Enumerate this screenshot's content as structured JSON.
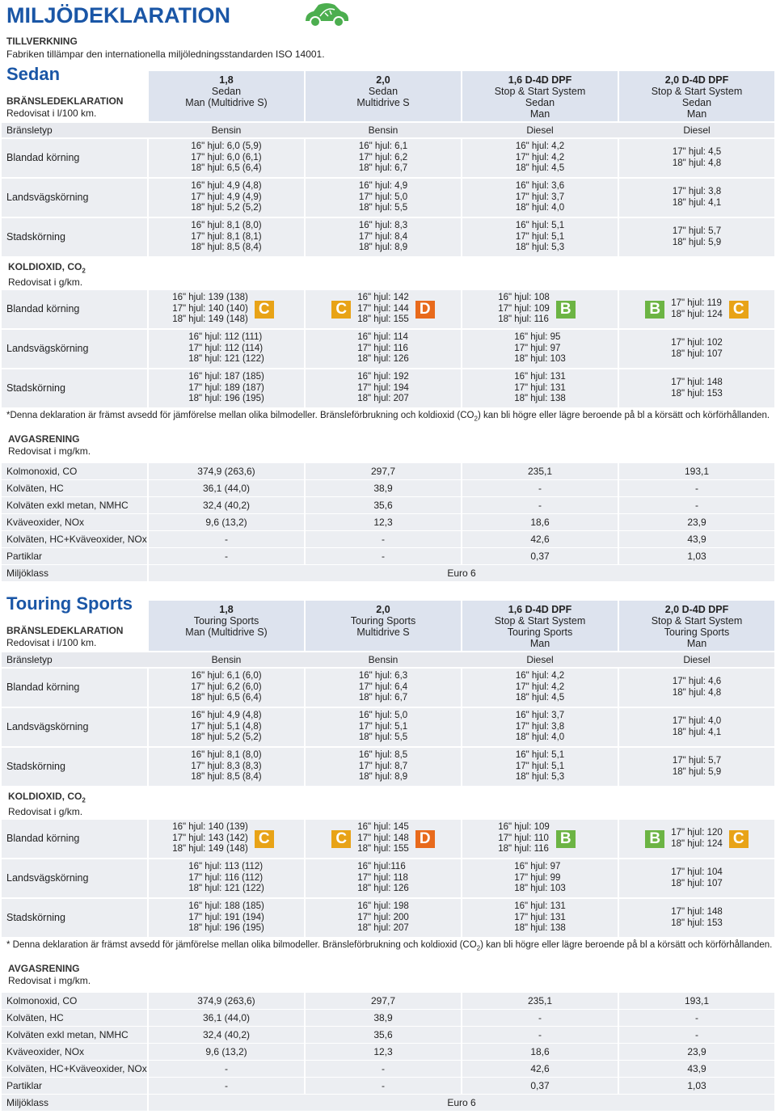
{
  "header": {
    "title": "MILJÖDEKLARATION",
    "subtitle": "TILLVERKNING",
    "text": "Fabriken tillämpar den internationella miljöledningsstandarden ISO 14001."
  },
  "sections": [
    {
      "name": "Sedan",
      "label": "BRÄNSLEDEKLARATION",
      "unit": "Redovisat i l/100 km.",
      "columns": [
        [
          "1,8",
          "Sedan",
          "Man (Multidrive S)"
        ],
        [
          "2,0",
          "Sedan",
          "Multidrive S"
        ],
        [
          "1,6 D-4D DPF",
          "Stop & Start System",
          "Sedan",
          "Man"
        ],
        [
          "2,0 D-4D DPF",
          "Stop & Start System",
          "Sedan",
          "Man"
        ]
      ],
      "fuel": {
        "label": "Bränsletyp",
        "values": [
          "Bensin",
          "Bensin",
          "Diesel",
          "Diesel"
        ]
      },
      "consumption": [
        {
          "label": "Blandad körning",
          "cells": [
            [
              "16\" hjul: 6,0 (5,9)",
              "17\" hjul: 6,0 (6,1)",
              "18\" hjul: 6,5 (6,4)"
            ],
            [
              "16\" hjul: 6,1",
              "17\" hjul: 6,2",
              "18\" hjul: 6,7"
            ],
            [
              "16\" hjul: 4,2",
              "17\" hjul: 4,2",
              "18\" hjul: 4,5"
            ],
            [
              "17\" hjul: 4,5",
              "18\" hjul: 4,8"
            ]
          ]
        },
        {
          "label": "Landsvägskörning",
          "cells": [
            [
              "16\" hjul: 4,9 (4,8)",
              "17\" hjul: 4,9 (4,9)",
              "18\" hjul: 5,2 (5,2)"
            ],
            [
              "16\" hjul: 4,9",
              "17\" hjul: 5,0",
              "18\" hjul: 5,5"
            ],
            [
              "16\" hjul: 3,6",
              "17\" hjul: 3,7",
              "18\" hjul: 4,0"
            ],
            [
              "17\" hjul: 3,8",
              "18\" hjul: 4,1"
            ]
          ]
        },
        {
          "label": "Stadskörning",
          "cells": [
            [
              "16\" hjul: 8,1 (8,0)",
              "17\" hjul: 8,1 (8,1)",
              "18\" hjul: 8,5 (8,4)"
            ],
            [
              "16\" hjul: 8,3",
              "17\" hjul: 8,4",
              "18\" hjul: 8,9"
            ],
            [
              "16\" hjul: 5,1",
              "17\" hjul: 5,1",
              "18\" hjul: 5,3"
            ],
            [
              "17\" hjul: 5,7",
              "18\" hjul: 5,9"
            ]
          ]
        }
      ],
      "co2_heading": [
        "KOLDIOXID, CO",
        "2"
      ],
      "co2_unit": "Redovisat i g/km.",
      "co2": [
        {
          "label": "Blandad körning",
          "cells": [
            [
              "16\" hjul: 139 (138)",
              "17\" hjul: 140 (140)",
              "18\" hjul: 149 (148)"
            ],
            [
              "16\" hjul: 142",
              "17\" hjul: 144",
              "18\" hjul: 155"
            ],
            [
              "16\" hjul: 108",
              "17\" hjul: 109",
              "18\" hjul: 116"
            ],
            [
              "17\" hjul: 119",
              "18\" hjul: 124"
            ]
          ],
          "badges": [
            {
              "right": "C"
            },
            {
              "left": "C",
              "right": "D"
            },
            {
              "right": "B"
            },
            {
              "left": "B",
              "right": "C"
            }
          ]
        },
        {
          "label": "Landsvägskörning",
          "cells": [
            [
              "16\" hjul: 112 (111)",
              "17\" hjul: 112 (114)",
              "18\" hjul: 121 (122)"
            ],
            [
              "16\" hjul: 114",
              "17\" hjul: 116",
              "18\" hjul: 126"
            ],
            [
              "16\" hjul: 95",
              "17\" hjul: 97",
              "18\" hjul: 103"
            ],
            [
              "17\" hjul: 102",
              "18\" hjul: 107"
            ]
          ]
        },
        {
          "label": "Stadskörning",
          "cells": [
            [
              "16\" hjul: 187 (185)",
              "17\" hjul: 189 (187)",
              "18\" hjul: 196 (195)"
            ],
            [
              "16\" hjul: 192",
              "17\" hjul: 194",
              "18\" hjul: 207"
            ],
            [
              "16\" hjul: 131",
              "17\" hjul: 131",
              "18\" hjul: 138"
            ],
            [
              "17\" hjul: 148",
              "18\" hjul: 153"
            ]
          ]
        }
      ],
      "footnote": [
        "*Denna deklaration är främst avsedd för jämförelse mellan olika bilmodeller. Bränsleförbrukning och koldioxid (CO",
        "2",
        ") kan bli högre eller lägre beroende på bl a körsätt och körförhållanden."
      ],
      "emissions_heading": "AVGASRENING",
      "emissions_unit": "Redovisat i mg/km.",
      "emissions": [
        {
          "label": "Kolmonoxid, CO",
          "values": [
            "374,9 (263,6)",
            "297,7",
            "235,1",
            "193,1"
          ]
        },
        {
          "label": "Kolväten, HC",
          "values": [
            "36,1 (44,0)",
            "38,9",
            "-",
            "-"
          ]
        },
        {
          "label": "Kolväten exkl metan, NMHC",
          "values": [
            "32,4 (40,2)",
            "35,6",
            "-",
            "-"
          ]
        },
        {
          "label": "Kväveoxider, NOx",
          "values": [
            "9,6 (13,2)",
            "12,3",
            "18,6",
            "23,9"
          ]
        },
        {
          "label": "Kolväten, HC+Kväveoxider, NOx",
          "values": [
            "-",
            "-",
            "42,6",
            "43,9"
          ]
        },
        {
          "label": "Partiklar",
          "values": [
            "-",
            "-",
            "0,37",
            "1,03"
          ]
        },
        {
          "label": "Miljöklass",
          "span": "Euro 6"
        }
      ]
    },
    {
      "name": "Touring Sports",
      "label": "BRÄNSLEDEKLARATION",
      "unit": "Redovisat i l/100 km.",
      "columns": [
        [
          "1,8",
          "Touring Sports",
          "Man (Multidrive S)"
        ],
        [
          "2,0",
          "Touring Sports",
          "Multidrive S"
        ],
        [
          "1,6 D-4D DPF",
          "Stop & Start System",
          "Touring Sports",
          "Man"
        ],
        [
          "2,0 D-4D DPF",
          "Stop & Start System",
          "Touring Sports",
          "Man"
        ]
      ],
      "fuel": {
        "label": "Bränsletyp",
        "values": [
          "Bensin",
          "Bensin",
          "Diesel",
          "Diesel"
        ]
      },
      "consumption": [
        {
          "label": "Blandad körning",
          "cells": [
            [
              "16\" hjul: 6,1 (6,0)",
              "17\" hjul: 6,2 (6,0)",
              "18\" hjul: 6,5 (6,4)"
            ],
            [
              "16\" hjul: 6,3",
              "17\" hjul: 6,4",
              "18\" hjul: 6,7"
            ],
            [
              "16\" hjul: 4,2",
              "17\" hjul: 4,2",
              "18\" hjul: 4,5"
            ],
            [
              "17\" hjul: 4,6",
              "18\" hjul: 4,8"
            ]
          ]
        },
        {
          "label": "Landsvägskörning",
          "cells": [
            [
              "16\" hjul: 4,9 (4,8)",
              "17\" hjul: 5,1 (4,8)",
              "18\" hjul: 5,2 (5,2)"
            ],
            [
              "16\" hjul: 5,0",
              "17\" hjul: 5,1",
              "18\" hjul: 5,5"
            ],
            [
              "16\" hjul: 3,7",
              "17\" hjul: 3,8",
              "18\" hjul: 4,0"
            ],
            [
              "17\" hjul: 4,0",
              "18\" hjul: 4,1"
            ]
          ]
        },
        {
          "label": "Stadskörning",
          "cells": [
            [
              "16\" hjul: 8,1 (8,0)",
              "17\" hjul: 8,3 (8,3)",
              "18\" hjul: 8,5 (8,4)"
            ],
            [
              "16\" hjul: 8,5",
              "17\" hjul: 8,7",
              "18\" hjul: 8,9"
            ],
            [
              "16\" hjul: 5,1",
              "17\" hjul: 5,1",
              "18\" hjul: 5,3"
            ],
            [
              "17\" hjul: 5,7",
              "18\" hjul: 5,9"
            ]
          ]
        }
      ],
      "co2_heading": [
        "KOLDIOXID, CO",
        "2"
      ],
      "co2_unit": "Redovisat i g/km.",
      "co2": [
        {
          "label": "Blandad körning",
          "cells": [
            [
              "16\" hjul: 140 (139)",
              "17\" hjul: 143 (142)",
              "18\" hjul: 149 (148)"
            ],
            [
              "16\" hjul: 145",
              "17\" hjul: 148",
              "18\" hjul: 155"
            ],
            [
              "16\" hjul: 109",
              "17\" hjul: 110",
              "18\" hjul: 116"
            ],
            [
              "17\" hjul: 120",
              "18\" hjul: 124"
            ]
          ],
          "badges": [
            {
              "right": "C"
            },
            {
              "left": "C",
              "right": "D"
            },
            {
              "right": "B"
            },
            {
              "left": "B",
              "right": "C"
            }
          ]
        },
        {
          "label": "Landsvägskörning",
          "cells": [
            [
              "16\" hjul: 113 (112)",
              "17\" hjul: 116 (112)",
              "18\" hjul: 121 (122)"
            ],
            [
              "16\" hjul:116",
              "17\" hjul: 118",
              "18\" hjul: 126"
            ],
            [
              "16\" hjul: 97",
              "17\" hjul: 99",
              "18\" hjul: 103"
            ],
            [
              "17\" hjul: 104",
              "18\" hjul: 107"
            ]
          ]
        },
        {
          "label": "Stadskörning",
          "cells": [
            [
              "16\" hjul: 188 (185)",
              "17\" hjul: 191 (194)",
              "18\" hjul: 196 (195)"
            ],
            [
              "16\" hjul: 198",
              "17\" hjul: 200",
              "18\" hjul: 207"
            ],
            [
              "16\" hjul: 131",
              "17\" hjul: 131",
              "18\" hjul: 138"
            ],
            [
              "17\" hjul: 148",
              "18\" hjul: 153"
            ]
          ]
        }
      ],
      "footnote": [
        "* Denna deklaration är främst avsedd för jämförelse mellan olika bilmodeller. Bränsleförbrukning och koldioxid (CO",
        "2",
        ") kan bli högre eller lägre beroende på bl a körsätt och körförhållanden."
      ],
      "emissions_heading": "AVGASRENING",
      "emissions_unit": "Redovisat i mg/km.",
      "emissions": [
        {
          "label": "Kolmonoxid, CO",
          "values": [
            "374,9 (263,6)",
            "297,7",
            "235,1",
            "193,1"
          ]
        },
        {
          "label": "Kolväten, HC",
          "values": [
            "36,1 (44,0)",
            "38,9",
            "-",
            "-"
          ]
        },
        {
          "label": "Kolväten exkl metan, NMHC",
          "values": [
            "32,4 (40,2)",
            "35,6",
            "-",
            "-"
          ]
        },
        {
          "label": "Kväveoxider, NOx",
          "values": [
            "9,6 (13,2)",
            "12,3",
            "18,6",
            "23,9"
          ]
        },
        {
          "label": "Kolväten, HC+Kväveoxider, NOx",
          "values": [
            "-",
            "-",
            "42,6",
            "43,9"
          ]
        },
        {
          "label": "Partiklar",
          "values": [
            "-",
            "-",
            "0,37",
            "1,03"
          ]
        },
        {
          "label": "Miljöklass",
          "span": "Euro 6"
        }
      ]
    }
  ]
}
